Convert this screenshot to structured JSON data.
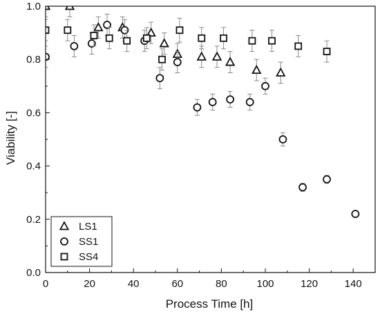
{
  "chart_data": {
    "type": "scatter",
    "title": "",
    "xlabel": "Process Time [h]",
    "ylabel": "Viability [-]",
    "xlim": [
      0,
      150
    ],
    "ylim": [
      0.0,
      1.0
    ],
    "xticks": [
      0,
      20,
      40,
      60,
      80,
      100,
      120,
      140
    ],
    "yticks": [
      0.0,
      0.2,
      0.4,
      0.6,
      0.8,
      1.0
    ],
    "xtick_labels": [
      "0",
      "20",
      "40",
      "60",
      "80",
      "100",
      "120",
      "140"
    ],
    "ytick_labels": [
      "0.0",
      "0.2",
      "0.4",
      "0.6",
      "0.8",
      "1.0"
    ],
    "grid": false,
    "legend_position": "bottom-left",
    "series": [
      {
        "name": "LS1",
        "marker": "triangle",
        "x": [
          0,
          11,
          24,
          35,
          48,
          54,
          60,
          71,
          78,
          84,
          96,
          107
        ],
        "y": [
          1.0,
          1.0,
          0.92,
          0.92,
          0.9,
          0.86,
          0.82,
          0.81,
          0.81,
          0.79,
          0.76,
          0.75
        ],
        "err": [
          0.04,
          0.04,
          0.04,
          0.04,
          0.04,
          0.04,
          0.04,
          0.04,
          0.04,
          0.04,
          0.04,
          0.04
        ]
      },
      {
        "name": "SS1",
        "marker": "circle",
        "x": [
          0,
          13,
          21,
          28,
          36,
          45,
          52,
          60,
          69,
          76,
          84,
          93,
          100,
          108,
          117,
          128,
          141
        ],
        "y": [
          0.81,
          0.85,
          0.86,
          0.93,
          0.91,
          0.87,
          0.73,
          0.79,
          0.62,
          0.64,
          0.65,
          0.64,
          0.7,
          0.5,
          0.32,
          0.35,
          0.22
        ],
        "err": [
          0.04,
          0.04,
          0.04,
          0.04,
          0.04,
          0.04,
          0.04,
          0.04,
          0.03,
          0.03,
          0.03,
          0.03,
          0.03,
          0.025,
          0.015,
          0.015,
          0.01
        ]
      },
      {
        "name": "SS4",
        "marker": "square",
        "x": [
          0,
          10,
          22,
          29,
          37,
          46,
          53,
          61,
          71,
          81,
          94,
          103,
          115,
          128
        ],
        "y": [
          0.91,
          0.91,
          0.89,
          0.88,
          0.87,
          0.88,
          0.8,
          0.91,
          0.88,
          0.88,
          0.87,
          0.87,
          0.85,
          0.83
        ],
        "err": [
          0.04,
          0.04,
          0.04,
          0.04,
          0.04,
          0.04,
          0.04,
          0.045,
          0.04,
          0.04,
          0.04,
          0.04,
          0.04,
          0.04
        ]
      }
    ]
  },
  "colors": {
    "marker_stroke": "#111111",
    "marker_fill": "#ffffff",
    "error_bar": "#888888",
    "axis": "#111111"
  }
}
